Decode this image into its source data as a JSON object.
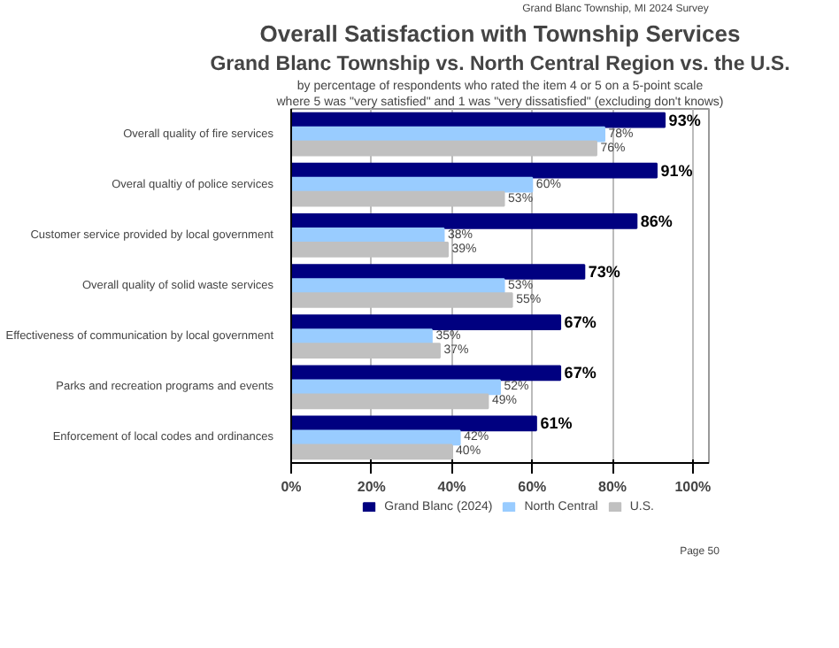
{
  "chart_data": {
    "type": "bar",
    "orientation": "horizontal",
    "title": "Overall Satisfaction with Township Services",
    "subtitle": "Grand Blanc Township vs. North Central Region vs. the U.S.",
    "annotations": [
      "Grand Blanc Township, MI 2024 Survey",
      "by percentage of respondents who rated the item 4 or 5 on a 5-point scale",
      "where 5 was \"very satisfied\" and 1 was \"very dissatisfied\" (excluding don't knows)",
      "Page 50"
    ],
    "categories": [
      "Overall quality of fire services",
      "Overal qualtiy of police services",
      "Customer service provided by local government",
      "Overall quality of solid waste services",
      "Effectiveness of communication by local government",
      "Parks and recreation programs and events",
      "Enforcement of local codes and ordinances"
    ],
    "series": [
      {
        "name": "Grand Blanc (2024)",
        "color": "#000080",
        "values": [
          93,
          91,
          86,
          73,
          67,
          67,
          61
        ],
        "value_labels": [
          "93%",
          "91%",
          "86%",
          "73%",
          "67%",
          "67%",
          "61%"
        ]
      },
      {
        "name": "North Central",
        "color": "#99ccff",
        "values": [
          78,
          60,
          38,
          53,
          35,
          52,
          42
        ],
        "value_labels": [
          "78%",
          "60%",
          "38%",
          "53%",
          "35%",
          "52%",
          "42%"
        ]
      },
      {
        "name": "U.S.",
        "color": "#c0c0c0",
        "values": [
          76,
          53,
          39,
          55,
          37,
          49,
          40
        ],
        "value_labels": [
          "76%",
          "53%",
          "39%",
          "55%",
          "37%",
          "49%",
          "40%"
        ]
      }
    ],
    "xlim": [
      0,
      104
    ],
    "xticks": [
      {
        "value": 0,
        "label": "0%"
      },
      {
        "value": 20,
        "label": "20%"
      },
      {
        "value": 40,
        "label": "40%"
      },
      {
        "value": 60,
        "label": "60%"
      },
      {
        "value": 80,
        "label": "80%"
      },
      {
        "value": 100,
        "label": "100%"
      }
    ],
    "grid": "x",
    "legend": "bottom"
  }
}
